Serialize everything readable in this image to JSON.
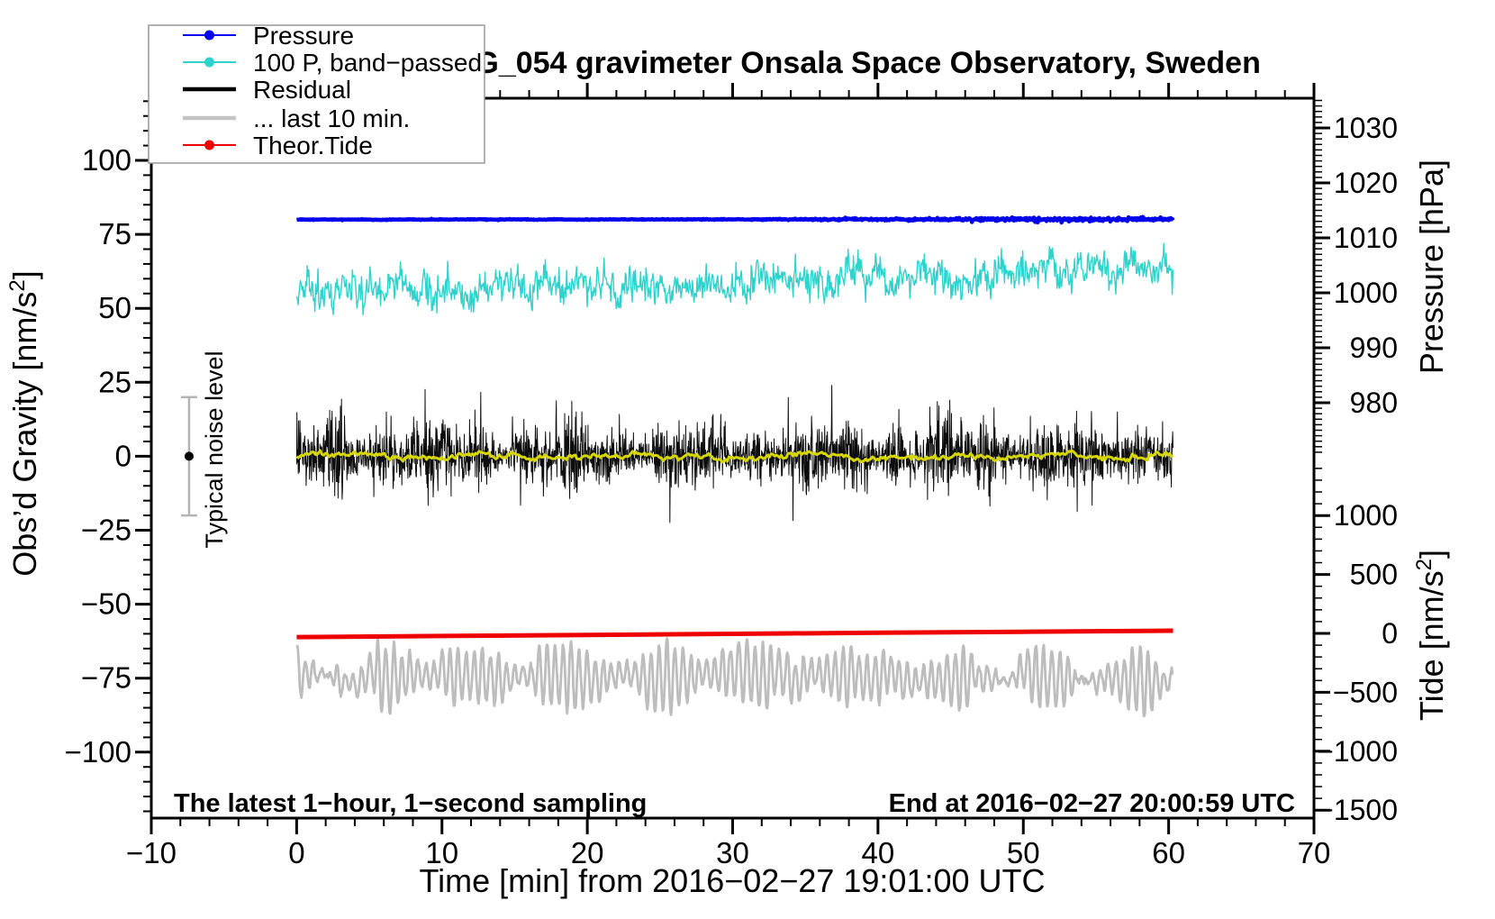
{
  "chart_data": {
    "type": "line",
    "title": "SCG_054 gravimeter Onsala Space Observatory, Sweden",
    "x_axis": {
      "title": "Time [min] from 2016−02−27 19:01:00 UTC",
      "range": [
        -10,
        70
      ],
      "major_ticks": [
        -10,
        0,
        10,
        20,
        30,
        40,
        50,
        60,
        70
      ],
      "minor_step": 2
    },
    "gravity_axis": {
      "title": "Obs'd Gravity [nm/s²]",
      "title_parts": {
        "main": "Obs’d Gravity [nm/s",
        "sup": "2",
        "end": "]"
      },
      "range": [
        -122.6,
        121.0
      ],
      "major_ticks": [
        -100,
        -75,
        -50,
        -25,
        0,
        25,
        50,
        75,
        100
      ],
      "minor_step": 5,
      "minor_range": [
        -120,
        120
      ]
    },
    "pressure_axis": {
      "title": "Pressure [hPa]",
      "major_ticks": [
        980,
        990,
        1000,
        1010,
        1020,
        1030
      ],
      "minor_step": 1,
      "minor_range": [
        971,
        1035
      ]
    },
    "tide_axis": {
      "title": "Tide [nm/s²]",
      "title_parts": {
        "main": "Tide [nm/s",
        "sup": "2",
        "end": "]"
      },
      "major_ticks": [
        -1500,
        -1000,
        -500,
        0,
        500,
        1000
      ],
      "minor_step": 100,
      "minor_range": [
        -1500,
        1400
      ]
    },
    "annotations": {
      "sampling": "The latest 1−hour, 1−second sampling",
      "end": "End at 2016−02−27 20:00:59 UTC",
      "noise_bar": {
        "label": "Typical noise level",
        "t": -7.4,
        "center": 0,
        "half_range": 20,
        "color": "#b4b4b4"
      }
    },
    "legend": [
      {
        "label": "Pressure",
        "color": "#0000ee",
        "width": 2,
        "dot": true
      },
      {
        "label": "100 P, band−passed",
        "color": "#2ed3cd",
        "width": 2,
        "dot": true
      },
      {
        "label": "Residual",
        "color": "#000000",
        "width": 4.5,
        "dot": false
      },
      {
        "label": "... last 10 min.",
        "color": "#c4c4c4",
        "width": 4.5,
        "dot": false
      },
      {
        "label": "Theor.Tide",
        "color": "#ef0000",
        "width": 2,
        "dot": true
      }
    ],
    "series": [
      {
        "name": "Pressure",
        "axis": "pressure",
        "color": "#0000ee",
        "stroke_width": 4.5,
        "t_start": 0,
        "t_end": 60.3,
        "readings_hPa": {
          "t0": 1013.3,
          "t30": 1013.3,
          "t60": 1013.4
        },
        "gen": {
          "seed": 11,
          "n": 1400,
          "base": 1013.32,
          "slope": 0.0012,
          "walk_alpha": 0.9,
          "walk_sigma": 0.008,
          "hf_sigma": 0.03,
          "hf_sigma_late": 0.15,
          "late_start": 30,
          "spike_p": 0.04,
          "spike_mult": 2.2,
          "clamp": 0.6
        }
      },
      {
        "name": "100 P, band−passed",
        "axis": "gravity",
        "color": "#2ed3cd",
        "stroke_width": 1.4,
        "t_start": 0,
        "t_end": 60.3,
        "readings_nms2": {
          "t0": 56,
          "t30": 60,
          "t60": 64
        },
        "gen": {
          "seed": 7,
          "n": 1150,
          "base": 56.2,
          "slope": 0.125,
          "walk_alpha": 0.88,
          "walk_sigma": 1.3,
          "hf_sigma": 2.7,
          "clamp": 9,
          "spike_p": 0.02,
          "spike_mult": 1.8
        }
      },
      {
        "name": "Residual",
        "axis": "gravity",
        "color": "#0d0d0d",
        "stroke_width": 1,
        "t_start": 0,
        "t_end": 60.3,
        "readings_nms2": {
          "mean": 0,
          "typical_spread": 9,
          "max_spikes": 22
        },
        "gen": {
          "seed": 23,
          "n": 2600,
          "base": 0,
          "slope": 0,
          "walk_alpha": 0.4,
          "walk_sigma": 0.8,
          "hf_sigma": 4.6,
          "clamp": 24,
          "spike_p": 0.05,
          "spike_mult": 2.1,
          "burst_amp": 0.3,
          "burst_period": 8.7
        }
      },
      {
        "name": "Residual smoothed (unlabeled yellow)",
        "axis": "gravity",
        "color": "#d7d700",
        "stroke_width": 3,
        "t_start": 0,
        "t_end": 60.3,
        "readings_nms2": {
          "mean": 0,
          "typical_spread": 1.5
        },
        "gen": {
          "seed": 5,
          "n": 520,
          "base": 0,
          "slope": 0,
          "walk_alpha": 0.9,
          "walk_sigma": 0.33,
          "hf_sigma": 0.3,
          "clamp": 2.2
        }
      },
      {
        "name": "... last 10 min.",
        "axis": "gravity",
        "color": "#bdbdbd",
        "stroke_width": 2.8,
        "t_start": 0,
        "t_end": 60.3,
        "readings_nms2": {
          "center": -74.5,
          "amplitude_min": 5,
          "amplitude_max": 12
        },
        "gen": {
          "seed": 31,
          "n": 2000,
          "base": -74.5,
          "slope": 0,
          "walk_alpha": 0.96,
          "walk_sigma": 0.35,
          "hf_sigma": 0.15,
          "osc_amp": 7.5,
          "osc_period": 0.55,
          "amp_mod": 0.5,
          "amp_period": 6.5
        }
      },
      {
        "name": "Theor.Tide",
        "axis": "tide",
        "color": "#ef0000",
        "stroke_width": 5,
        "t_start": 0,
        "t_end": 60.3,
        "points": [
          [
            0,
            -31
          ],
          [
            10,
            -22
          ],
          [
            20,
            -13
          ],
          [
            30,
            -4
          ],
          [
            40,
            5
          ],
          [
            50,
            14
          ],
          [
            60.3,
            23
          ]
        ]
      }
    ]
  }
}
